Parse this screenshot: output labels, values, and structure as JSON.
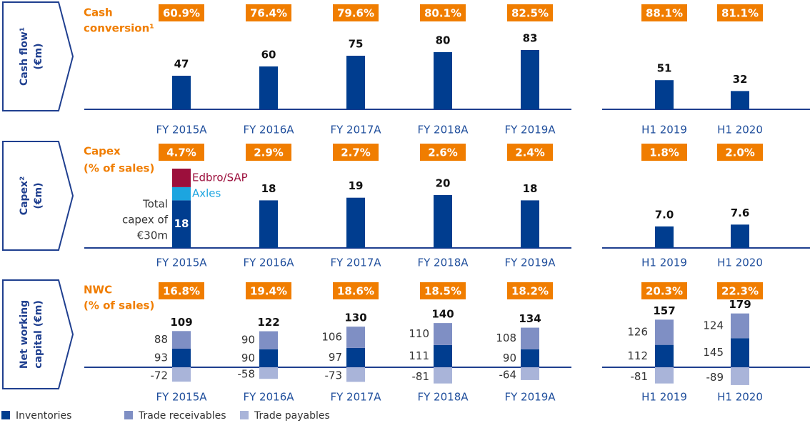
{
  "chart_data": [
    {
      "type": "bar",
      "side_label": [
        "Cash flow¹",
        "(€m)"
      ],
      "metric_label": [
        "Cash",
        "conversion¹"
      ],
      "metric_values": [
        60.9,
        76.4,
        79.6,
        80.1,
        82.5,
        88.1,
        81.1
      ],
      "metric_labels": [
        "60.9%",
        "76.4%",
        "79.6%",
        "80.1%",
        "82.5%",
        "88.1%",
        "81.1%"
      ],
      "categories": [
        "FY 2015A",
        "FY 2016A",
        "FY 2017A",
        "FY 2018A",
        "FY 2019A",
        "H1 2019",
        "H1 2020"
      ],
      "values": [
        47,
        60,
        75,
        80,
        83,
        51,
        32
      ],
      "color": "#003d8f"
    },
    {
      "type": "bar",
      "side_label": [
        "Capex²",
        "(€m)"
      ],
      "metric_label": [
        "Capex",
        "(% of sales)"
      ],
      "metric_values": [
        4.7,
        2.9,
        2.7,
        2.6,
        2.4,
        1.8,
        2.0
      ],
      "metric_labels": [
        "4.7%",
        "2.9%",
        "2.7%",
        "2.6%",
        "2.4%",
        "1.8%",
        "2.0%"
      ],
      "categories": [
        "FY 2015A",
        "FY 2016A",
        "FY 2017A",
        "FY 2018A",
        "FY 2019A",
        "H1 2019",
        "H1 2020"
      ],
      "values": [
        18,
        18,
        19,
        20,
        18,
        7.0,
        7.6
      ],
      "value_labels": [
        "18",
        "18",
        "19",
        "20",
        "18",
        "7.0",
        "7.6"
      ],
      "color": "#003d8f",
      "components": [
        {
          "name": "Axles",
          "value": 5,
          "color": "#1ca5e0"
        },
        {
          "name": "Edbro/SAP",
          "value": 7,
          "color": "#9c0f3c"
        }
      ],
      "annotation": [
        "Total",
        "capex of",
        "€30m"
      ]
    },
    {
      "type": "stacked_bar",
      "side_label": [
        "Net working",
        "capital (€m)"
      ],
      "metric_label": [
        "NWC",
        "(% of sales)"
      ],
      "metric_values": [
        16.8,
        19.4,
        18.6,
        18.5,
        18.2,
        20.3,
        22.3
      ],
      "metric_labels": [
        "16.8%",
        "19.4%",
        "18.6%",
        "18.5%",
        "18.2%",
        "20.3%",
        "22.3%"
      ],
      "categories": [
        "FY 2015A",
        "FY 2016A",
        "FY 2017A",
        "FY 2018A",
        "FY 2019A",
        "H1 2019",
        "H1 2020"
      ],
      "series": [
        {
          "name": "Inventories",
          "color": "#003d8f",
          "values": [
            93,
            90,
            97,
            111,
            90,
            112,
            145
          ]
        },
        {
          "name": "Trade receivables",
          "color": "#7f8fc4",
          "values": [
            88,
            90,
            106,
            110,
            108,
            126,
            124
          ]
        },
        {
          "name": "Trade payables",
          "color": "#a9b4d9",
          "values": [
            -72,
            -58,
            -73,
            -81,
            -64,
            -81,
            -89
          ]
        }
      ],
      "totals": [
        109,
        122,
        130,
        140,
        134,
        157,
        179
      ]
    }
  ]
}
